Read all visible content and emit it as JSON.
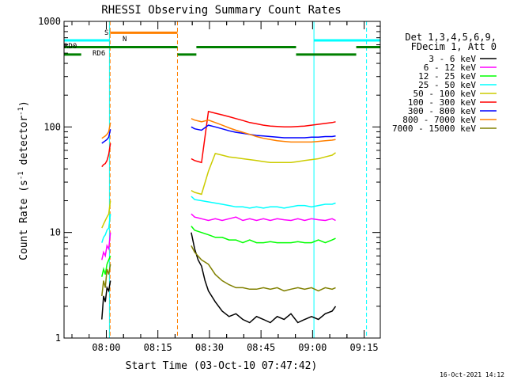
{
  "chart_data": {
    "type": "line",
    "title": "RHESSI Observing Summary Count Rates",
    "xlabel": "Start Time (03-Oct-10 07:47:42)",
    "ylabel": "Count Rate (s⁻¹ detector⁻¹)",
    "ylabel_parts": {
      "main": "Count Rate (s",
      "exp1": "-1",
      "mid": " detector",
      "exp2": "-1",
      "tail": ")"
    },
    "y_scale": "log",
    "ylim": [
      1,
      1000
    ],
    "y_ticks": [
      1,
      10,
      100,
      1000
    ],
    "y_tick_labels": [
      "1",
      "10",
      "100",
      "1000"
    ],
    "x_unit": "minutes after 07:47:42",
    "xlim": [
      0,
      92
    ],
    "x_ticks": [
      12.3,
      27.3,
      42.3,
      57.3,
      72.3,
      87.3
    ],
    "x_tick_labels": [
      "08:00",
      "08:15",
      "08:30",
      "08:45",
      "09:00",
      "09:15"
    ],
    "footer_timestamp": "16-Oct-2021 14:12",
    "legend_header": [
      "Det 1,3,4,5,6,9,",
      "FDecim 1, Att 0"
    ],
    "legend_position": "right",
    "series": [
      {
        "name": "3 - 6 keV",
        "color": "#000000",
        "segments": [
          {
            "x": [
              11.0,
              11.5,
              12.0,
              12.5,
              13.0,
              13.5
            ],
            "y": [
              1.5,
              2.5,
              2.2,
              3.0,
              2.8,
              3.5
            ]
          },
          {
            "x": [
              37.0,
              38.0,
              39.0,
              40.0,
              41.0,
              42.0,
              44.0,
              46.0,
              48.0,
              50.0,
              52.0,
              54.0,
              56.0,
              58.0,
              60.0,
              62.0,
              64.0,
              66.0,
              68.0,
              70.0,
              72.0,
              74.0,
              76.0,
              78.0,
              79.0
            ],
            "y": [
              10.0,
              7.0,
              5.5,
              4.8,
              3.5,
              2.8,
              2.2,
              1.8,
              1.6,
              1.7,
              1.5,
              1.4,
              1.6,
              1.5,
              1.4,
              1.6,
              1.5,
              1.7,
              1.4,
              1.5,
              1.6,
              1.5,
              1.7,
              1.8,
              2.0
            ]
          }
        ]
      },
      {
        "name": "6 - 12 keV",
        "color": "#ff00ff",
        "segments": [
          {
            "x": [
              11.0,
              11.5,
              12.0,
              12.5,
              13.0,
              13.5
            ],
            "y": [
              5.5,
              6.5,
              6.0,
              7.5,
              7.0,
              10.0
            ]
          },
          {
            "x": [
              37.0,
              38.0,
              40.0,
              42.0,
              44.0,
              46.0,
              48.0,
              50.0,
              52.0,
              54.0,
              56.0,
              58.0,
              60.0,
              62.0,
              64.0,
              66.0,
              68.0,
              70.0,
              72.0,
              74.0,
              76.0,
              78.0,
              79.0
            ],
            "y": [
              15.0,
              14.0,
              13.5,
              13.0,
              13.5,
              13.0,
              13.5,
              14.0,
              13.0,
              13.5,
              13.0,
              13.5,
              13.0,
              13.5,
              13.2,
              13.0,
              13.5,
              13.0,
              13.5,
              13.2,
              13.0,
              13.5,
              13.0
            ]
          }
        ]
      },
      {
        "name": "12 - 25 keV",
        "color": "#00ff00",
        "segments": [
          {
            "x": [
              11.0,
              11.5,
              12.0,
              12.5,
              13.0,
              13.5
            ],
            "y": [
              3.8,
              4.5,
              4.0,
              5.0,
              5.5,
              6.0
            ]
          },
          {
            "x": [
              37.0,
              38.0,
              40.0,
              42.0,
              44.0,
              46.0,
              48.0,
              50.0,
              52.0,
              54.0,
              56.0,
              58.0,
              60.0,
              62.0,
              64.0,
              66.0,
              68.0,
              70.0,
              72.0,
              74.0,
              76.0,
              78.0,
              79.0
            ],
            "y": [
              11.5,
              10.5,
              10.0,
              9.5,
              9.0,
              9.0,
              8.5,
              8.5,
              8.0,
              8.5,
              8.0,
              8.0,
              8.2,
              8.0,
              8.0,
              8.0,
              8.2,
              8.0,
              8.0,
              8.5,
              8.0,
              8.5,
              8.8
            ]
          }
        ]
      },
      {
        "name": "25 - 50 keV",
        "color": "#00ffff",
        "segments": [
          {
            "x": [
              11.0,
              11.5,
              12.0,
              12.5,
              13.0,
              13.5
            ],
            "y": [
              8.0,
              9.0,
              9.5,
              10.5,
              11.0,
              15.0
            ]
          },
          {
            "x": [
              37.0,
              38.0,
              40.0,
              42.0,
              44.0,
              46.0,
              48.0,
              50.0,
              52.0,
              54.0,
              56.0,
              58.0,
              60.0,
              62.0,
              64.0,
              66.0,
              68.0,
              70.0,
              72.0,
              74.0,
              76.0,
              78.0,
              79.0
            ],
            "y": [
              22.0,
              20.5,
              20.0,
              19.5,
              19.0,
              18.5,
              18.0,
              17.5,
              17.5,
              17.0,
              17.5,
              17.0,
              17.5,
              17.5,
              17.0,
              17.5,
              18.0,
              18.0,
              17.5,
              18.0,
              18.5,
              18.5,
              19.0
            ]
          }
        ]
      },
      {
        "name": "50 - 100 keV",
        "color": "#cccc00",
        "segments": [
          {
            "x": [
              11.0,
              11.5,
              12.0,
              12.5,
              13.0,
              13.5
            ],
            "y": [
              11.0,
              12.0,
              13.0,
              14.0,
              15.0,
              20.0
            ]
          },
          {
            "x": [
              37.0,
              38.0,
              40.0,
              42.0,
              44.0,
              46.0,
              48.0,
              50.0,
              52.0,
              54.0,
              56.0,
              58.0,
              60.0,
              62.0,
              64.0,
              66.0,
              68.0,
              70.0,
              72.0,
              74.0,
              76.0,
              78.0,
              79.0
            ],
            "y": [
              25.0,
              24.0,
              23.0,
              38.0,
              56.0,
              54.0,
              52.0,
              51.0,
              50.0,
              49.0,
              48.0,
              47.0,
              46.0,
              46.0,
              46.0,
              46.0,
              47.0,
              48.0,
              49.0,
              50.0,
              52.0,
              54.0,
              57.0
            ]
          }
        ]
      },
      {
        "name": "100 - 300 keV",
        "color": "#ff0000",
        "segments": [
          {
            "x": [
              11.0,
              11.5,
              12.0,
              12.5,
              13.0,
              13.5
            ],
            "y": [
              42.0,
              44.0,
              45.0,
              48.0,
              55.0,
              70.0
            ]
          },
          {
            "x": [
              37.0,
              38.0,
              40.0,
              42.0,
              44.0,
              46.0,
              48.0,
              50.0,
              52.0,
              54.0,
              56.0,
              58.0,
              60.0,
              62.0,
              64.0,
              66.0,
              68.0,
              70.0,
              72.0,
              74.0,
              76.0,
              78.0,
              79.0
            ],
            "y": [
              50.0,
              48.0,
              46.0,
              140.0,
              135.0,
              130.0,
              125.0,
              120.0,
              115.0,
              110.0,
              107.0,
              104.0,
              102.0,
              101.0,
              100.0,
              100.0,
              101.0,
              102.0,
              104.0,
              106.0,
              108.0,
              110.0,
              112.0
            ]
          }
        ]
      },
      {
        "name": "300 - 800 keV",
        "color": "#0000ff",
        "segments": [
          {
            "x": [
              11.0,
              11.5,
              12.0,
              12.5,
              13.0,
              13.5
            ],
            "y": [
              70.0,
              72.0,
              74.0,
              76.0,
              80.0,
              95.0
            ]
          },
          {
            "x": [
              37.0,
              38.0,
              40.0,
              42.0,
              44.0,
              46.0,
              48.0,
              50.0,
              52.0,
              54.0,
              56.0,
              58.0,
              60.0,
              62.0,
              64.0,
              66.0,
              68.0,
              70.0,
              72.0,
              74.0,
              76.0,
              78.0,
              79.0
            ],
            "y": [
              100.0,
              96.0,
              93.0,
              104.0,
              100.0,
              96.0,
              92.0,
              89.0,
              87.0,
              85.0,
              83.0,
              82.0,
              81.0,
              80.0,
              79.0,
              79.0,
              79.0,
              79.0,
              80.0,
              80.0,
              81.0,
              81.0,
              82.0
            ]
          }
        ]
      },
      {
        "name": "800 - 7000 keV",
        "color": "#ff8000",
        "segments": [
          {
            "x": [
              11.0,
              11.5,
              12.0,
              12.5,
              13.0,
              13.5
            ],
            "y": [
              78.0,
              80.0,
              82.0,
              85.0,
              90.0,
              110.0
            ]
          },
          {
            "x": [
              37.0,
              38.0,
              40.0,
              42.0,
              44.0,
              46.0,
              48.0,
              50.0,
              52.0,
              54.0,
              56.0,
              58.0,
              60.0,
              62.0,
              64.0,
              66.0,
              68.0,
              70.0,
              72.0,
              74.0,
              76.0,
              78.0,
              79.0
            ],
            "y": [
              120.0,
              116.0,
              112.0,
              116.0,
              110.0,
              104.0,
              98.0,
              93.0,
              89.0,
              85.0,
              81.0,
              78.0,
              76.0,
              74.0,
              73.0,
              72.0,
              72.0,
              72.0,
              72.0,
              73.0,
              74.0,
              75.0,
              76.0
            ]
          }
        ]
      },
      {
        "name": "7000 - 15000 keV",
        "color": "#808000",
        "segments": [
          {
            "x": [
              11.0,
              11.5,
              12.0,
              12.5,
              13.0,
              13.5
            ],
            "y": [
              2.5,
              3.5,
              3.0,
              4.5,
              4.0,
              5.0
            ]
          },
          {
            "x": [
              37.0,
              38.0,
              40.0,
              42.0,
              44.0,
              46.0,
              48.0,
              50.0,
              52.0,
              54.0,
              56.0,
              58.0,
              60.0,
              62.0,
              64.0,
              66.0,
              68.0,
              70.0,
              72.0,
              74.0,
              76.0,
              78.0,
              79.0
            ],
            "y": [
              7.5,
              6.5,
              5.5,
              5.0,
              4.0,
              3.5,
              3.2,
              3.0,
              3.0,
              2.9,
              2.9,
              3.0,
              2.9,
              3.0,
              2.8,
              2.9,
              3.0,
              2.9,
              3.0,
              2.8,
              3.0,
              2.9,
              3.0
            ]
          }
        ]
      }
    ],
    "vlines": [
      {
        "x": 13.2,
        "color": "#00ffff",
        "style": "solid"
      },
      {
        "x": 13.4,
        "color": "#ff8000",
        "style": "dashed"
      },
      {
        "x": 33.0,
        "color": "#ff8000",
        "style": "dashed"
      },
      {
        "x": 72.7,
        "color": "#00ffff",
        "style": "solid"
      },
      {
        "x": 88.0,
        "color": "#00ffff",
        "style": "dashed"
      }
    ],
    "status_bars": [
      {
        "label": "S",
        "color": "#ff8000",
        "y": 780,
        "segments": [
          [
            13.4,
            33.0
          ]
        ]
      },
      {
        "label": "N",
        "color": "#00ffff",
        "y": 660,
        "segments": [
          [
            0,
            13.2
          ],
          [
            72.7,
            92.0
          ]
        ]
      },
      {
        "label": "RD0",
        "color": "#008000",
        "y": 570,
        "segments": [
          [
            0,
            33.0
          ],
          [
            38.5,
            67.5
          ],
          [
            85.0,
            92.0
          ]
        ]
      },
      {
        "label": "RD6",
        "color": "#008000",
        "y": 485,
        "segments": [
          [
            0,
            5.0
          ],
          [
            33.0,
            38.5
          ],
          [
            67.5,
            85.0
          ]
        ]
      }
    ]
  }
}
